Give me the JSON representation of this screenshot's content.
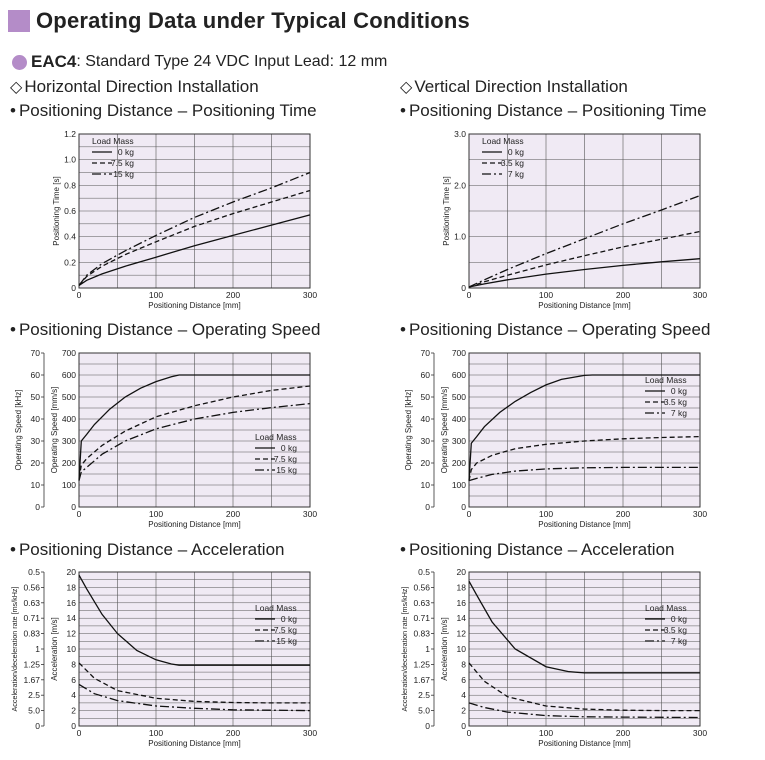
{
  "header": {
    "title": "Operating Data under Typical Conditions",
    "model": "EAC4",
    "model_detail": ": Standard Type  24 VDC Input  Lead: 12 mm"
  },
  "sections": {
    "left": "Horizontal Direction Installation",
    "right": "Vertical Direction Installation"
  },
  "headings": {
    "time": "Positioning Distance – Positioning Time",
    "speed": "Positioning Distance – Operating Speed",
    "accel": "Positioning Distance – Acceleration"
  },
  "chart_data": [
    {
      "type": "line",
      "id": "h-time",
      "xlabel": "Positioning Distance [mm]",
      "ylabel": "Positioning Time [s]",
      "xlim": [
        0,
        300
      ],
      "ylim": [
        0,
        1.2
      ],
      "xticks": [
        0,
        100,
        200,
        300
      ],
      "yticks": [
        0,
        0.2,
        0.4,
        0.6,
        0.8,
        1.0,
        1.2
      ],
      "ytick_labels": [
        "0",
        "0.2",
        "0.4",
        "0.6",
        "0.8",
        "1.0",
        "1.2"
      ],
      "legend_title": "Load Mass",
      "legend_position": "top-left",
      "series": [
        {
          "name": "0 kg",
          "style": "solid",
          "x": [
            0,
            10,
            30,
            60,
            100,
            150,
            200,
            250,
            300
          ],
          "y": [
            0.02,
            0.06,
            0.11,
            0.17,
            0.24,
            0.33,
            0.41,
            0.49,
            0.57
          ]
        },
        {
          "name": "7.5 kg",
          "style": "dashed",
          "x": [
            0,
            10,
            30,
            60,
            100,
            150,
            200,
            250,
            300
          ],
          "y": [
            0.02,
            0.09,
            0.17,
            0.26,
            0.36,
            0.48,
            0.58,
            0.67,
            0.76
          ]
        },
        {
          "name": "15 kg",
          "style": "dashdot",
          "x": [
            0,
            10,
            30,
            60,
            100,
            150,
            200,
            250,
            300
          ],
          "y": [
            0.02,
            0.1,
            0.19,
            0.29,
            0.41,
            0.55,
            0.67,
            0.78,
            0.9
          ]
        }
      ]
    },
    {
      "type": "line",
      "id": "v-time",
      "xlabel": "Positioning Distance [mm]",
      "ylabel": "Positioning Time [s]",
      "xlim": [
        0,
        300
      ],
      "ylim": [
        0,
        3.0
      ],
      "xticks": [
        0,
        100,
        200,
        300
      ],
      "yticks": [
        0,
        1.0,
        2.0,
        3.0
      ],
      "ytick_labels": [
        "0",
        "1.0",
        "2.0",
        "3.0"
      ],
      "legend_title": "Load Mass",
      "legend_position": "top-left",
      "series": [
        {
          "name": "0 kg",
          "style": "solid",
          "x": [
            0,
            20,
            50,
            100,
            150,
            200,
            250,
            300
          ],
          "y": [
            0.02,
            0.08,
            0.16,
            0.27,
            0.36,
            0.44,
            0.51,
            0.57
          ]
        },
        {
          "name": "3.5 kg",
          "style": "dashed",
          "x": [
            0,
            20,
            50,
            100,
            150,
            200,
            250,
            300
          ],
          "y": [
            0.02,
            0.12,
            0.25,
            0.45,
            0.63,
            0.8,
            0.95,
            1.1
          ]
        },
        {
          "name": "7 kg",
          "style": "dashdot",
          "x": [
            0,
            20,
            50,
            100,
            150,
            200,
            250,
            300
          ],
          "y": [
            0.02,
            0.16,
            0.36,
            0.67,
            0.96,
            1.25,
            1.52,
            1.8
          ]
        }
      ]
    },
    {
      "type": "line",
      "id": "h-speed",
      "xlabel": "Positioning Distance [mm]",
      "ylabel": "Operating Speed [mm/s]",
      "ylabel2": "Operating Speed [kHz]",
      "xlim": [
        0,
        300
      ],
      "ylim": [
        0,
        700
      ],
      "ylim2": [
        0,
        70
      ],
      "xticks": [
        0,
        100,
        200,
        300
      ],
      "yticks": [
        0,
        100,
        200,
        300,
        400,
        500,
        600,
        700
      ],
      "ytick_labels": [
        "0",
        "100",
        "200",
        "300",
        "400",
        "500",
        "600",
        "700"
      ],
      "yticks2": [
        "0",
        "10",
        "20",
        "30",
        "40",
        "50",
        "60",
        "70"
      ],
      "legend_title": "Load Mass",
      "legend_position": "bottom-right",
      "series": [
        {
          "name": "0 kg",
          "style": "solid",
          "x": [
            0,
            3,
            10,
            20,
            40,
            60,
            80,
            100,
            120,
            130,
            200,
            300
          ],
          "y": [
            120,
            300,
            330,
            375,
            445,
            500,
            540,
            570,
            592,
            600,
            600,
            600
          ]
        },
        {
          "name": "7.5 kg",
          "style": "dashed",
          "x": [
            0,
            3,
            10,
            30,
            60,
            100,
            150,
            200,
            250,
            300
          ],
          "y": [
            130,
            190,
            220,
            280,
            345,
            410,
            460,
            500,
            530,
            550
          ]
        },
        {
          "name": "15 kg",
          "style": "dashdot",
          "x": [
            0,
            3,
            10,
            30,
            60,
            100,
            150,
            200,
            250,
            300
          ],
          "y": [
            120,
            160,
            180,
            240,
            300,
            355,
            400,
            430,
            452,
            470
          ]
        }
      ]
    },
    {
      "type": "line",
      "id": "v-speed",
      "xlabel": "Positioning Distance [mm]",
      "ylabel": "Operating Speed [mm/s]",
      "ylabel2": "Operating Speed [kHz]",
      "xlim": [
        0,
        300
      ],
      "ylim": [
        0,
        700
      ],
      "ylim2": [
        0,
        70
      ],
      "xticks": [
        0,
        100,
        200,
        300
      ],
      "yticks": [
        0,
        100,
        200,
        300,
        400,
        500,
        600,
        700
      ],
      "ytick_labels": [
        "0",
        "100",
        "200",
        "300",
        "400",
        "500",
        "600",
        "700"
      ],
      "yticks2": [
        "0",
        "10",
        "20",
        "30",
        "40",
        "50",
        "60",
        "70"
      ],
      "legend_title": "Load Mass",
      "legend_position": "right",
      "series": [
        {
          "name": "0 kg",
          "style": "solid",
          "x": [
            0,
            3,
            10,
            20,
            40,
            60,
            80,
            100,
            120,
            150,
            160,
            200,
            300
          ],
          "y": [
            120,
            290,
            320,
            365,
            430,
            480,
            520,
            555,
            580,
            598,
            600,
            600,
            600
          ]
        },
        {
          "name": "3.5 kg",
          "style": "dashed",
          "x": [
            0,
            3,
            10,
            30,
            60,
            100,
            150,
            200,
            250,
            300
          ],
          "y": [
            120,
            170,
            200,
            235,
            265,
            285,
            300,
            310,
            316,
            320
          ]
        },
        {
          "name": "7 kg",
          "style": "dashdot",
          "x": [
            0,
            10,
            30,
            60,
            100,
            150,
            200,
            300
          ],
          "y": [
            120,
            130,
            148,
            163,
            173,
            178,
            180,
            180
          ]
        }
      ]
    },
    {
      "type": "line",
      "id": "h-accel",
      "xlabel": "Positioning Distance [mm]",
      "ylabel": "Acceleration [m/s]",
      "ylabel2": "Acceleration/deceleration rate [ms/kHz]",
      "xlim": [
        0,
        300
      ],
      "ylim": [
        0,
        20
      ],
      "ylim2": [
        0,
        20
      ],
      "xticks": [
        0,
        100,
        200,
        300
      ],
      "yticks": [
        0,
        2,
        4,
        6,
        8,
        10,
        12,
        14,
        16,
        18,
        20
      ],
      "ytick_labels": [
        "0",
        "2",
        "4",
        "6",
        "8",
        "10",
        "12",
        "14",
        "16",
        "18",
        "20"
      ],
      "yticks2": [
        "0",
        "5.0",
        "2.5",
        "1.67",
        "1.25",
        "1",
        "0.83",
        "0.71",
        "0.63",
        "0.56",
        "0.5"
      ],
      "legend_title": "Load Mass",
      "legend_position": "right",
      "series": [
        {
          "name": "0 kg",
          "style": "solid",
          "x": [
            0,
            10,
            30,
            50,
            75,
            100,
            120,
            130,
            200,
            300
          ],
          "y": [
            19.6,
            17.8,
            14.5,
            12.0,
            9.8,
            8.6,
            8.05,
            7.9,
            7.9,
            7.9
          ]
        },
        {
          "name": "7.5 kg",
          "style": "dashed",
          "x": [
            0,
            20,
            50,
            100,
            150,
            200,
            250,
            300
          ],
          "y": [
            8.2,
            6.2,
            4.6,
            3.6,
            3.2,
            3.05,
            3.0,
            3.0
          ]
        },
        {
          "name": "15 kg",
          "style": "dashdot",
          "x": [
            0,
            20,
            50,
            100,
            150,
            200,
            250,
            300
          ],
          "y": [
            5.4,
            4.2,
            3.3,
            2.6,
            2.3,
            2.1,
            2.05,
            2.0
          ]
        }
      ]
    },
    {
      "type": "line",
      "id": "v-accel",
      "xlabel": "Positioning Distance [mm]",
      "ylabel": "Acceleration [m/s]",
      "ylabel2": "Acceleration/deceleration rate [ms/kHz]",
      "xlim": [
        0,
        300
      ],
      "ylim": [
        0,
        20
      ],
      "ylim2": [
        0,
        20
      ],
      "xticks": [
        0,
        100,
        200,
        300
      ],
      "yticks": [
        0,
        2,
        4,
        6,
        8,
        10,
        12,
        14,
        16,
        18,
        20
      ],
      "ytick_labels": [
        "0",
        "2",
        "4",
        "6",
        "8",
        "10",
        "12",
        "14",
        "16",
        "18",
        "20"
      ],
      "yticks2": [
        "0",
        "5.0",
        "2.5",
        "1.67",
        "1.25",
        "1",
        "0.83",
        "0.71",
        "0.63",
        "0.56",
        "0.5"
      ],
      "legend_title": "Load Mass",
      "legend_position": "right",
      "series": [
        {
          "name": "0 kg",
          "style": "solid",
          "x": [
            0,
            10,
            30,
            60,
            100,
            130,
            150,
            200,
            300
          ],
          "y": [
            18.8,
            17.0,
            13.5,
            10.0,
            7.7,
            7.05,
            6.9,
            6.9,
            6.9
          ]
        },
        {
          "name": "3.5 kg",
          "style": "dashed",
          "x": [
            0,
            20,
            50,
            100,
            150,
            200,
            250,
            300
          ],
          "y": [
            8.2,
            5.8,
            3.8,
            2.6,
            2.2,
            2.05,
            2.0,
            2.0
          ]
        },
        {
          "name": "7 kg",
          "style": "dashdot",
          "x": [
            0,
            20,
            50,
            100,
            150,
            200,
            300
          ],
          "y": [
            3.0,
            2.4,
            1.8,
            1.35,
            1.2,
            1.15,
            1.1
          ]
        }
      ]
    }
  ]
}
